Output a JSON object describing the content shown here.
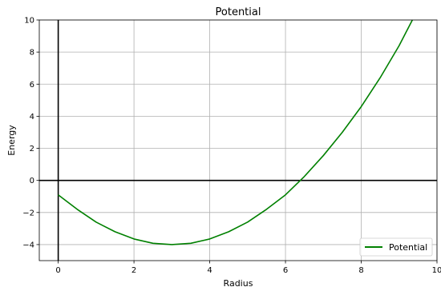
{
  "chart_data": {
    "type": "line",
    "title": "Potential",
    "xlabel": "Radius",
    "ylabel": "Energy",
    "xlim": [
      -0.5,
      10
    ],
    "ylim": [
      -5,
      10
    ],
    "xticks": [
      0,
      2,
      4,
      6,
      8,
      10
    ],
    "yticks": [
      -4,
      -2,
      0,
      2,
      4,
      6,
      8,
      10
    ],
    "xtick_labels": [
      "0",
      "2",
      "4",
      "6",
      "8",
      "10"
    ],
    "ytick_labels": [
      "−4",
      "−2",
      "0",
      "2",
      "4",
      "6",
      "8",
      "10"
    ],
    "grid": true,
    "reference_lines": {
      "x": 0,
      "y": 0
    },
    "legend": {
      "position": "lower-right",
      "entries": [
        "Potential"
      ]
    },
    "series": [
      {
        "name": "Potential",
        "color": "#008000",
        "x": [
          0,
          0.5,
          1,
          1.5,
          2,
          2.5,
          3,
          3.5,
          4,
          4.5,
          5,
          5.5,
          6,
          6.5,
          7,
          7.5,
          8,
          8.5,
          9,
          9.35
        ],
        "y": [
          -0.9,
          -1.8,
          -2.6,
          -3.2,
          -3.65,
          -3.92,
          -4.0,
          -3.92,
          -3.65,
          -3.2,
          -2.6,
          -1.8,
          -0.9,
          0.25,
          1.55,
          3.0,
          4.6,
          6.4,
          8.4,
          10.0
        ]
      }
    ]
  }
}
